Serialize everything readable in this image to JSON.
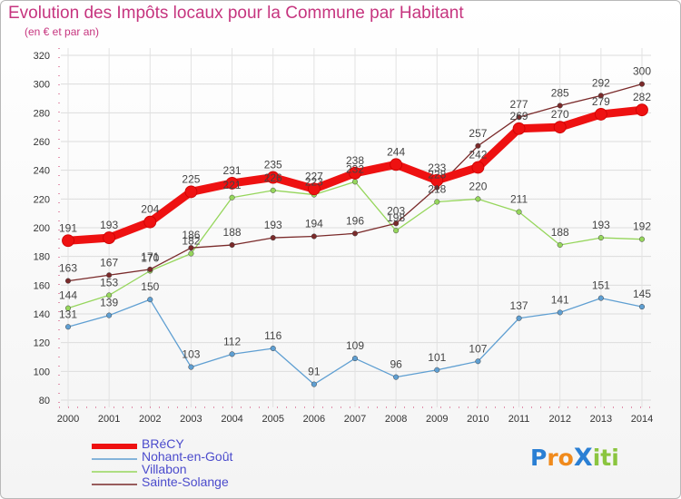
{
  "title": "Evolution des Impôts locaux pour la Commune par Habitant",
  "subtitle": "(en € et par an)",
  "logo": {
    "text": "ProXiti",
    "letters": [
      "P",
      "r",
      "o",
      "X",
      "i",
      "t",
      "i"
    ],
    "colors": [
      "#2a7fd4",
      "#f08a1c",
      "#f08a1c",
      "#2a7fd4",
      "#8bc53f",
      "#8bc53f",
      "#8bc53f"
    ]
  },
  "chart_data": {
    "type": "line",
    "title": "Evolution des Impôts locaux pour la Commune par Habitant",
    "subtitle": "(en € et par an)",
    "xlabel": "",
    "ylabel": "",
    "x": [
      "2000",
      "2001",
      "2002",
      "2003",
      "2004",
      "2005",
      "2006",
      "2007",
      "2008",
      "2009",
      "2010",
      "2011",
      "2012",
      "2013",
      "2014"
    ],
    "ylim": [
      80,
      320
    ],
    "yticks": [
      "80",
      "100",
      "120",
      "140",
      "160",
      "180",
      "200",
      "220",
      "240",
      "260",
      "280",
      "300",
      "320"
    ],
    "grid": true,
    "legend_position": "bottom-left",
    "series": [
      {
        "name": "BRéCY",
        "color": "#ee1111",
        "values": [
          191,
          193,
          204,
          225,
          231,
          235,
          227,
          238,
          244,
          233,
          242,
          269,
          270,
          279,
          282
        ],
        "labels": [
          "191",
          "193",
          "204",
          "225",
          "231",
          "235",
          "227",
          "238",
          "244",
          "233",
          "242",
          "269",
          "270",
          "279",
          "282"
        ]
      },
      {
        "name": "Nohant-en-Goût",
        "color": "#5f9fd2",
        "values": [
          131,
          139,
          150,
          103,
          112,
          116,
          91,
          109,
          96,
          101,
          107,
          137,
          141,
          151,
          145
        ],
        "labels": [
          "131",
          "139",
          "150",
          "103",
          "112",
          "116",
          "91",
          "109",
          "96",
          "101",
          "107",
          "137",
          "141",
          "151",
          "145"
        ]
      },
      {
        "name": "Villabon",
        "color": "#96d65c",
        "values": [
          144,
          153,
          170,
          182,
          221,
          226,
          223,
          232,
          198,
          218,
          220,
          211,
          188,
          193,
          192
        ],
        "labels": [
          "144",
          "153",
          "170",
          "182",
          "221",
          "226",
          "223",
          "232",
          "198",
          "218",
          "220",
          "211",
          "188",
          "193",
          "192"
        ]
      },
      {
        "name": "Sainte-Solange",
        "color": "#7a2a2a",
        "values": [
          163,
          167,
          171,
          186,
          188,
          193,
          194,
          196,
          203,
          228,
          257,
          277,
          285,
          292,
          300
        ],
        "labels": [
          "163",
          "167",
          "171",
          "186",
          "188",
          "193",
          "194",
          "196",
          "203",
          "228",
          "257",
          "277",
          "285",
          "292",
          "300"
        ]
      }
    ]
  }
}
